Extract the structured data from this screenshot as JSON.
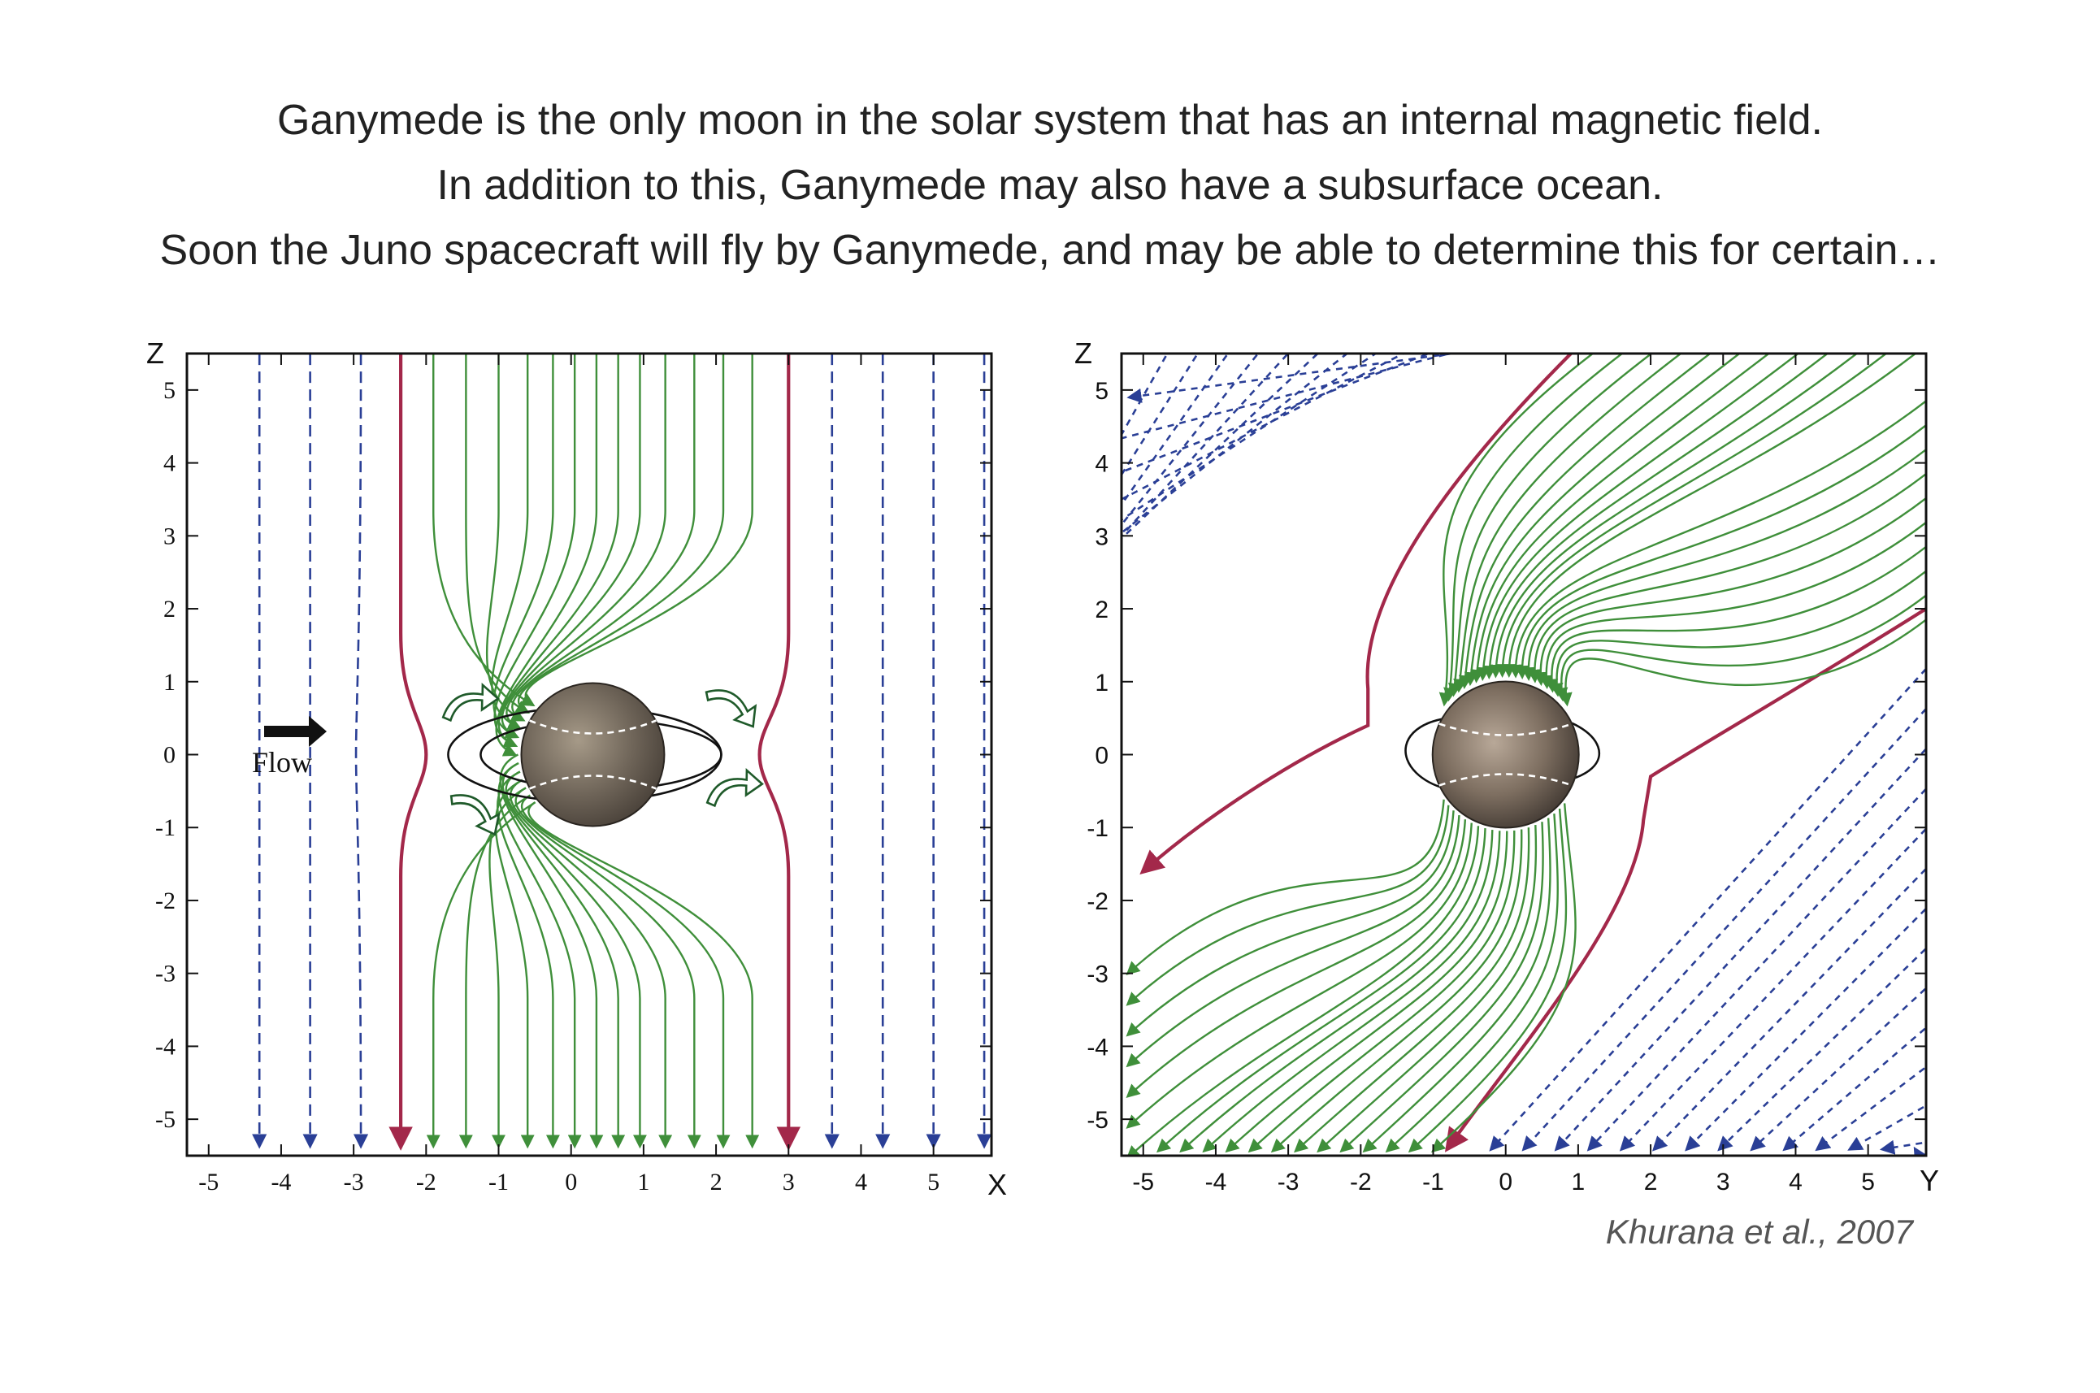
{
  "intro": {
    "line1": "Ganymede is the only moon in the solar system that has an internal magnetic field.",
    "line2": "In addition to this, Ganymede may also have a subsurface ocean.",
    "line3": "Soon the Juno spacecraft will fly by Ganymede, and may be able to determine this for certain…"
  },
  "credit": "Khurana et al., 2007",
  "colors": {
    "field_line": "#3f8f3a",
    "separatrix": "#a3284a",
    "background_field": "#2a3f96",
    "moon_dark": "#4a423a",
    "moon_light": "#a69a88"
  },
  "left_panel": {
    "x_axis_name": "X",
    "z_axis_name": "Z",
    "x_range": [
      -5.3,
      5.8
    ],
    "z_range": [
      -5.5,
      5.5
    ],
    "x_ticks": [
      -5,
      -4,
      -3,
      -2,
      -1,
      0,
      1,
      2,
      3,
      4,
      5
    ],
    "z_ticks": [
      5,
      4,
      3,
      2,
      1,
      0,
      -1,
      -2,
      -3,
      -4,
      -5
    ],
    "flow_label": "Flow"
  },
  "right_panel": {
    "y_axis_name": "Y",
    "z_axis_name": "Z",
    "y_range": [
      -5.3,
      5.8
    ],
    "z_range": [
      -5.5,
      5.5
    ],
    "y_ticks": [
      -5,
      -4,
      -3,
      -2,
      -1,
      0,
      1,
      2,
      3,
      4,
      5
    ],
    "z_ticks": [
      5,
      4,
      3,
      2,
      1,
      0,
      -1,
      -2,
      -3,
      -4,
      -5
    ]
  }
}
